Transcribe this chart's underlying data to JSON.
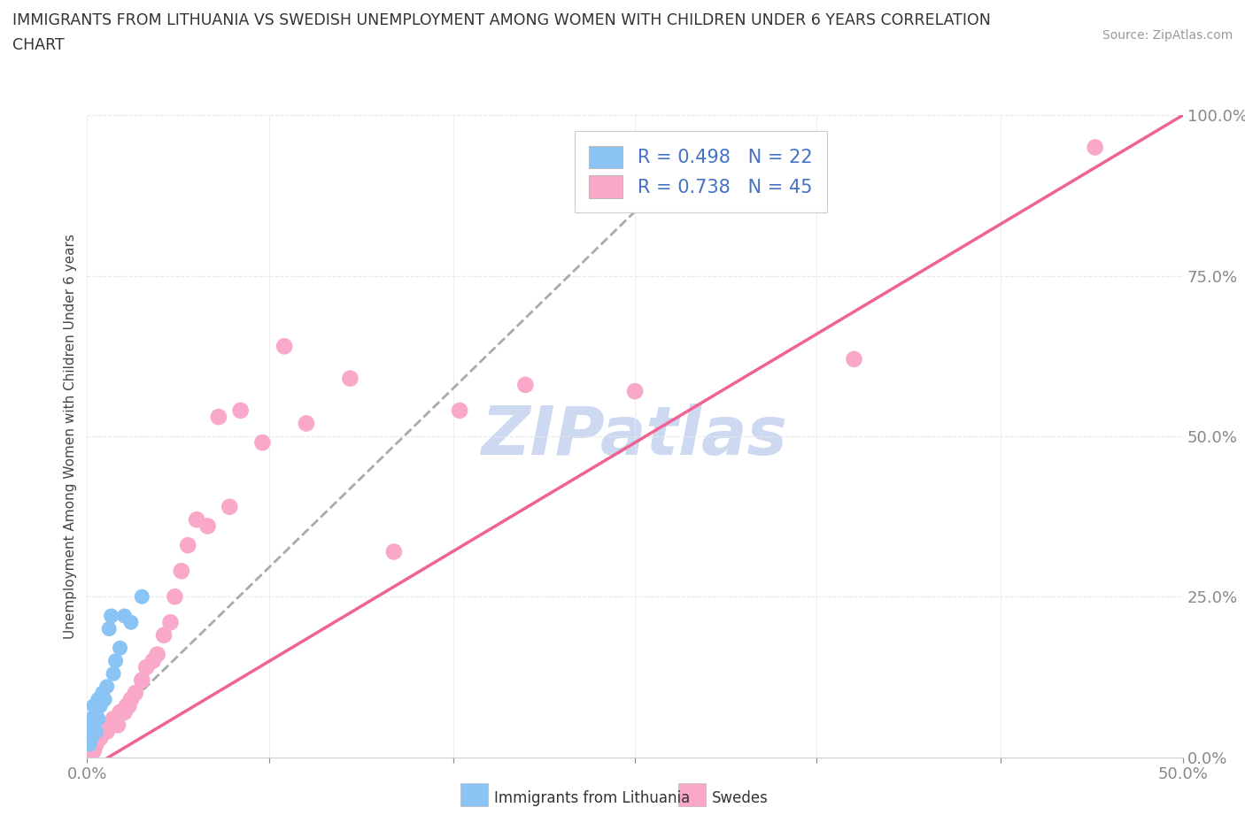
{
  "title_line1": "IMMIGRANTS FROM LITHUANIA VS SWEDISH UNEMPLOYMENT AMONG WOMEN WITH CHILDREN UNDER 6 YEARS CORRELATION",
  "title_line2": "CHART",
  "source_text": "Source: ZipAtlas.com",
  "ylabel": "Unemployment Among Women with Children Under 6 years",
  "xlim": [
    0.0,
    0.5
  ],
  "ylim": [
    0.0,
    1.0
  ],
  "xticks": [
    0.0,
    0.083,
    0.167,
    0.25,
    0.333,
    0.417,
    0.5
  ],
  "xtick_labels": [
    "0.0%",
    "",
    "",
    "",
    "",
    "",
    "50.0%"
  ],
  "yticks": [
    0.0,
    0.25,
    0.5,
    0.75,
    1.0
  ],
  "ytick_labels": [
    "0.0%",
    "25.0%",
    "50.0%",
    "75.0%",
    "100.0%"
  ],
  "lithuania_color": "#89c4f4",
  "swedes_color": "#f9a8c9",
  "lithuania_line_color": "#aaaaaa",
  "swedes_line_color": "#f06292",
  "R_lithuania": 0.498,
  "N_lithuania": 22,
  "R_swedes": 0.738,
  "N_swedes": 45,
  "watermark_text": "ZIPatlas",
  "watermark_color": "#ccd9f0",
  "legend_text_color": "#4472c4",
  "background_color": "#ffffff",
  "grid_color": "#e8e8e8",
  "lithuania_scatter_x": [
    0.001,
    0.001,
    0.002,
    0.002,
    0.003,
    0.003,
    0.004,
    0.004,
    0.005,
    0.005,
    0.006,
    0.007,
    0.008,
    0.009,
    0.01,
    0.011,
    0.012,
    0.013,
    0.015,
    0.017,
    0.02,
    0.025
  ],
  "lithuania_scatter_y": [
    0.02,
    0.04,
    0.03,
    0.06,
    0.05,
    0.08,
    0.04,
    0.07,
    0.06,
    0.09,
    0.08,
    0.1,
    0.09,
    0.11,
    0.2,
    0.22,
    0.13,
    0.15,
    0.17,
    0.22,
    0.21,
    0.25
  ],
  "swedes_scatter_x": [
    0.001,
    0.002,
    0.003,
    0.004,
    0.005,
    0.006,
    0.007,
    0.008,
    0.009,
    0.01,
    0.011,
    0.012,
    0.013,
    0.014,
    0.015,
    0.016,
    0.017,
    0.018,
    0.019,
    0.02,
    0.022,
    0.025,
    0.027,
    0.03,
    0.032,
    0.035,
    0.038,
    0.04,
    0.043,
    0.046,
    0.05,
    0.055,
    0.06,
    0.065,
    0.07,
    0.08,
    0.09,
    0.1,
    0.12,
    0.14,
    0.17,
    0.2,
    0.25,
    0.35,
    0.46
  ],
  "swedes_scatter_y": [
    0.01,
    0.02,
    0.01,
    0.02,
    0.03,
    0.03,
    0.04,
    0.04,
    0.04,
    0.05,
    0.05,
    0.06,
    0.06,
    0.05,
    0.07,
    0.07,
    0.07,
    0.08,
    0.08,
    0.09,
    0.1,
    0.12,
    0.14,
    0.15,
    0.16,
    0.19,
    0.21,
    0.25,
    0.29,
    0.33,
    0.37,
    0.36,
    0.53,
    0.39,
    0.54,
    0.49,
    0.64,
    0.52,
    0.59,
    0.32,
    0.54,
    0.58,
    0.57,
    0.62,
    0.95
  ],
  "swedes_line_x0": 0.0,
  "swedes_line_y0": -0.02,
  "swedes_line_x1": 0.5,
  "swedes_line_y1": 1.0,
  "lithuania_line_x0": 0.0,
  "lithuania_line_y0": 0.02,
  "lithuania_line_x1": 0.25,
  "lithuania_line_y1": 0.85
}
